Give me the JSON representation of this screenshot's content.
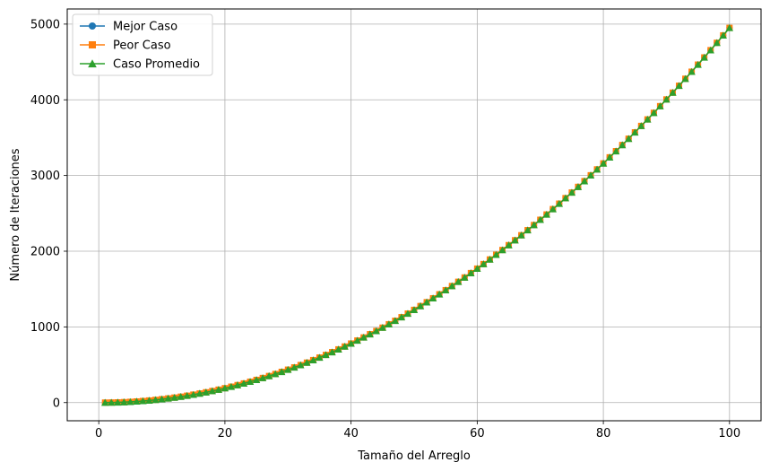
{
  "chart_data": {
    "type": "line",
    "title": "",
    "xlabel": "Tamaño del Arreglo",
    "ylabel": "Número de Iteraciones",
    "xlim": [
      -5,
      105
    ],
    "ylim": [
      -240,
      5200
    ],
    "x_ticks": [
      0,
      20,
      40,
      60,
      80,
      100
    ],
    "y_ticks": [
      0,
      1000,
      2000,
      3000,
      4000,
      5000
    ],
    "grid": true,
    "legend_position": "top-left",
    "x_range": [
      1,
      100
    ],
    "formula": "n*(n-1)/2",
    "series": [
      {
        "name": "Mejor Caso",
        "color": "#1f77b4",
        "marker": "circle"
      },
      {
        "name": "Peor Caso",
        "color": "#ff7f0e",
        "marker": "square"
      },
      {
        "name": "Caso Promedio",
        "color": "#2ca02c",
        "marker": "triangle"
      }
    ]
  }
}
